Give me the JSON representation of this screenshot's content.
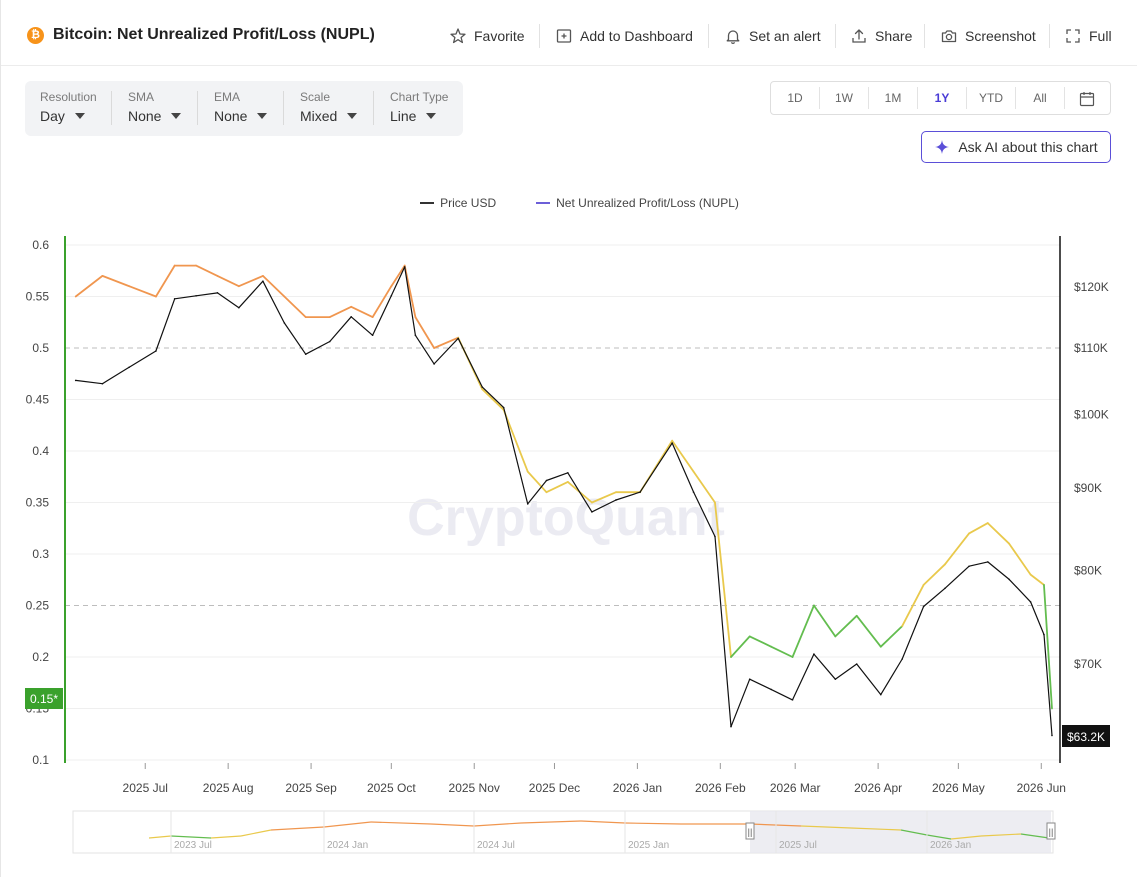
{
  "header": {
    "title": "Bitcoin: Net Unrealized Profit/Loss (NUPL)",
    "logo_glyph": "₿",
    "actions": [
      {
        "label": "Favorite",
        "icon": "star-icon"
      },
      {
        "label": "Add to Dashboard",
        "icon": "add-dashboard-icon"
      },
      {
        "label": "Set an alert",
        "icon": "bell-icon"
      },
      {
        "label": "Share",
        "icon": "share-icon"
      },
      {
        "label": "Screenshot",
        "icon": "camera-icon"
      },
      {
        "label": "Full",
        "icon": "fullscreen-icon"
      }
    ]
  },
  "controls": [
    {
      "label": "Resolution",
      "value": "Day"
    },
    {
      "label": "SMA",
      "value": "None"
    },
    {
      "label": "EMA",
      "value": "None"
    },
    {
      "label": "Scale",
      "value": "Mixed"
    },
    {
      "label": "Chart Type",
      "value": "Line"
    }
  ],
  "ranges": {
    "options": [
      "1D",
      "1W",
      "1M",
      "1Y",
      "YTD",
      "All"
    ],
    "active": "1Y"
  },
  "ask_ai": {
    "label": "Ask AI about this chart"
  },
  "watermark": "CryptoQuant",
  "colors": {
    "accent": "#4a3cd6",
    "price": "#111111",
    "nupl_legend": "#6c5fd8",
    "nupl_orange": "#f0964f",
    "nupl_yellow": "#e9c94c",
    "nupl_green": "#63bd4f",
    "current_badge": "#3aa12c"
  },
  "chart_data": {
    "type": "line",
    "title": "Bitcoin: Net Unrealized Profit/Loss (NUPL)",
    "legend": [
      "Price USD",
      "Net Unrealized Profit/Loss (NUPL)"
    ],
    "legend_position": "top-center",
    "x_ticks": [
      "2025 Jul",
      "2025 Aug",
      "2025 Sep",
      "2025 Oct",
      "2025 Nov",
      "2025 Dec",
      "2026 Jan",
      "2026 Feb",
      "2026 Mar",
      "2026 Apr",
      "2026 May",
      "2026 Jun"
    ],
    "y_left": {
      "ticks": [
        "0.6",
        "0.55",
        "0.5",
        "0.45",
        "0.4",
        "0.35",
        "0.3",
        "0.25",
        "0.2",
        "0.15",
        "0.1"
      ],
      "range": [
        0.1,
        0.6
      ]
    },
    "y_right": {
      "ticks": [
        "$120K",
        "$110K",
        "$100K",
        "$90K",
        "$80K",
        "$70K"
      ],
      "scale": "log",
      "range": [
        60000,
        128000
      ]
    },
    "reference_lines": [
      0.5,
      0.25
    ],
    "grid": true,
    "current_nupl_label": "0.15*",
    "current_price_label": "$63.2K",
    "x": [
      "2025-06-05",
      "2025-06-15",
      "2025-06-25",
      "2025-07-05",
      "2025-07-12",
      "2025-07-20",
      "2025-07-28",
      "2025-08-05",
      "2025-08-14",
      "2025-08-22",
      "2025-08-30",
      "2025-09-08",
      "2025-09-16",
      "2025-09-24",
      "2025-10-01",
      "2025-10-06",
      "2025-10-10",
      "2025-10-17",
      "2025-10-26",
      "2025-11-04",
      "2025-11-12",
      "2025-11-21",
      "2025-11-28",
      "2025-12-06",
      "2025-12-15",
      "2025-12-24",
      "2026-01-02",
      "2026-01-14",
      "2026-01-22",
      "2026-01-30",
      "2026-02-05",
      "2026-02-12",
      "2026-02-20",
      "2026-02-28",
      "2026-03-08",
      "2026-03-16",
      "2026-03-24",
      "2026-04-02",
      "2026-04-10",
      "2026-04-18",
      "2026-04-26",
      "2026-05-05",
      "2026-05-12",
      "2026-05-20",
      "2026-05-28",
      "2026-06-02",
      "2026-06-05"
    ],
    "series": [
      {
        "name": "Price USD",
        "axis": "right",
        "values": [
          105000,
          104500,
          107000,
          109500,
          118000,
          118500,
          119000,
          116500,
          121000,
          114000,
          109000,
          111000,
          115000,
          112000,
          118500,
          123500,
          112000,
          107500,
          111500,
          104000,
          101000,
          88000,
          91000,
          92000,
          87000,
          88500,
          89500,
          96000,
          89500,
          84000,
          64000,
          68500,
          67500,
          66500,
          71000,
          68500,
          70000,
          67000,
          70500,
          76000,
          78000,
          80500,
          81000,
          79000,
          76500,
          73000,
          63200
        ]
      },
      {
        "name": "Net Unrealized Profit/Loss (NUPL)",
        "axis": "left",
        "values": [
          0.55,
          0.57,
          0.56,
          0.55,
          0.58,
          0.58,
          0.57,
          0.56,
          0.57,
          0.55,
          0.53,
          0.53,
          0.54,
          0.53,
          0.56,
          0.58,
          0.53,
          0.5,
          0.51,
          0.46,
          0.44,
          0.38,
          0.36,
          0.37,
          0.35,
          0.36,
          0.36,
          0.41,
          0.38,
          0.35,
          0.2,
          0.22,
          0.21,
          0.2,
          0.25,
          0.22,
          0.24,
          0.21,
          0.23,
          0.27,
          0.29,
          0.32,
          0.33,
          0.31,
          0.28,
          0.27,
          0.15
        ]
      }
    ]
  },
  "navigator": {
    "labels": [
      "2023 Jul",
      "2024 Jan",
      "2024 Jul",
      "2025 Jan",
      "2025 Jul",
      "2026 Jan"
    ],
    "handle_glyph": "||"
  }
}
